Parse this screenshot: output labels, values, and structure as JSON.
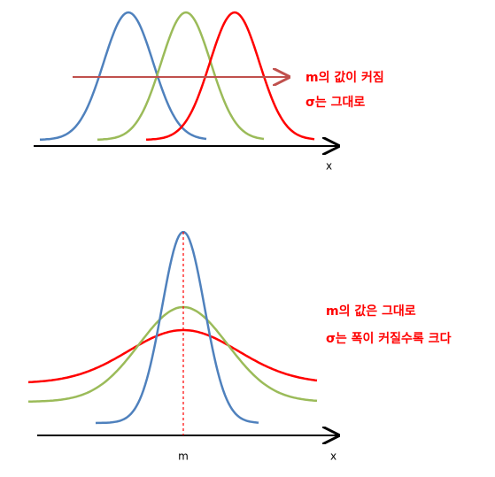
{
  "top": {
    "axis_label": "x",
    "annotation": [
      "m의 값이 커짐",
      "σ는 그대로"
    ]
  },
  "bottom": {
    "axis_label": "x",
    "mean_label": "m",
    "annotation": [
      "m의 값은 그대로",
      "σ는 폭이 커질수록 크다"
    ]
  }
}
